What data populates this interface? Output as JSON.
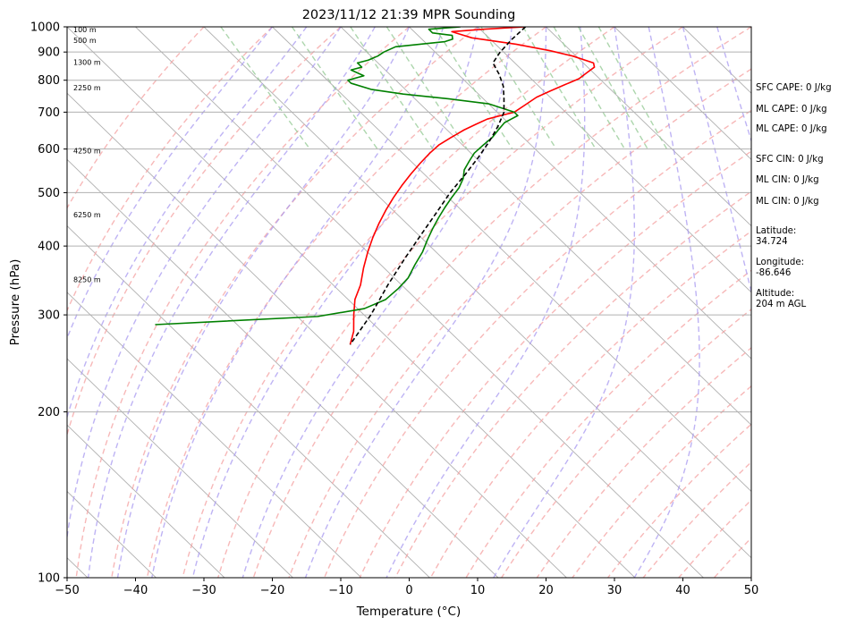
{
  "chart_data": {
    "type": "line",
    "title": "2023/11/12 21:39 MPR Sounding",
    "xlabel": "Temperature (°C)",
    "ylabel": "Pressure (hPa)",
    "xlim": [
      -50,
      50
    ],
    "ylim": [
      1000,
      100
    ],
    "y_scale": "log",
    "x_ticks": [
      -50,
      -40,
      -30,
      -20,
      -10,
      0,
      10,
      20,
      30,
      40,
      50
    ],
    "x_tick_labels": [
      "−50",
      "−40",
      "−30",
      "−20",
      "−10",
      "0",
      "10",
      "20",
      "30",
      "40",
      "50"
    ],
    "y_ticks": [
      1000,
      900,
      800,
      700,
      600,
      500,
      400,
      300,
      200,
      100
    ],
    "y_tick_labels": [
      "1000",
      "900",
      "800",
      "700",
      "600",
      "500",
      "400",
      "300",
      "200",
      "100"
    ],
    "grid": true,
    "skew_deg_per_log10": 83,
    "series": [
      {
        "key": "temperature",
        "color": "#ff0000",
        "points": [
          [
            17,
            1000
          ],
          [
            10.5,
            990
          ],
          [
            5.5,
            980
          ],
          [
            7.5,
            955
          ],
          [
            13,
            930
          ],
          [
            17,
            905
          ],
          [
            19.5,
            885
          ],
          [
            21.5,
            860
          ],
          [
            21,
            845
          ],
          [
            19,
            825
          ],
          [
            17,
            805
          ],
          [
            14,
            785
          ],
          [
            11,
            765
          ],
          [
            8,
            745
          ],
          [
            5,
            720
          ],
          [
            2.5,
            700
          ],
          [
            0,
            690
          ],
          [
            -2.5,
            680
          ],
          [
            -5,
            665
          ],
          [
            -7.5,
            650
          ],
          [
            -10.5,
            630
          ],
          [
            -13.5,
            610
          ],
          [
            -16,
            590
          ],
          [
            -19,
            565
          ],
          [
            -22,
            540
          ],
          [
            -25,
            515
          ],
          [
            -28,
            490
          ],
          [
            -31,
            465
          ],
          [
            -34,
            440
          ],
          [
            -37,
            415
          ],
          [
            -40,
            390
          ],
          [
            -43,
            365
          ],
          [
            -46,
            340
          ],
          [
            -49,
            320
          ],
          [
            -51.5,
            300
          ],
          [
            -54,
            280
          ],
          [
            -56.5,
            265
          ]
        ]
      },
      {
        "key": "dewpoint",
        "color": "#008000",
        "points": [
          [
            7.5,
            1000
          ],
          [
            2.5,
            990
          ],
          [
            2.5,
            975
          ],
          [
            5,
            965
          ],
          [
            4.5,
            950
          ],
          [
            3,
            940
          ],
          [
            -5,
            920
          ],
          [
            -7.5,
            900
          ],
          [
            -9,
            885
          ],
          [
            -11,
            870
          ],
          [
            -13,
            860
          ],
          [
            -13,
            845
          ],
          [
            -15,
            835
          ],
          [
            -14,
            815
          ],
          [
            -17,
            800
          ],
          [
            -17,
            790
          ],
          [
            -15,
            770
          ],
          [
            -11,
            755
          ],
          [
            -5,
            740
          ],
          [
            0,
            725
          ],
          [
            2.5,
            700
          ],
          [
            2.5,
            690
          ],
          [
            1,
            680
          ],
          [
            -0.5,
            670
          ],
          [
            -2.5,
            650
          ],
          [
            -4.5,
            630
          ],
          [
            -7,
            610
          ],
          [
            -9.5,
            590
          ],
          [
            -11.5,
            570
          ],
          [
            -13.5,
            550
          ],
          [
            -15,
            530
          ],
          [
            -17,
            510
          ],
          [
            -19.5,
            490
          ],
          [
            -22,
            470
          ],
          [
            -24.5,
            450
          ],
          [
            -27,
            430
          ],
          [
            -29.5,
            410
          ],
          [
            -32,
            390
          ],
          [
            -35,
            370
          ],
          [
            -38,
            350
          ],
          [
            -41,
            335
          ],
          [
            -44.5,
            320
          ],
          [
            -49,
            308
          ],
          [
            -57,
            298
          ],
          [
            -82,
            288
          ]
        ]
      },
      {
        "key": "parcel",
        "color": "#000000",
        "dashed": true,
        "points": [
          [
            17,
            1000
          ],
          [
            13.2,
            950
          ],
          [
            9.5,
            900
          ],
          [
            6.8,
            860
          ],
          [
            6,
            820
          ],
          [
            4.8,
            780
          ],
          [
            3,
            740
          ],
          [
            1,
            700
          ],
          [
            -2,
            660
          ],
          [
            -5.5,
            620
          ],
          [
            -9.5,
            580
          ],
          [
            -14,
            540
          ],
          [
            -19,
            500
          ],
          [
            -24,
            460
          ],
          [
            -29.5,
            420
          ],
          [
            -35.5,
            380
          ],
          [
            -42,
            340
          ],
          [
            -49,
            300
          ],
          [
            -56.5,
            265
          ]
        ]
      }
    ],
    "height_labels": [
      {
        "text": "100 m",
        "p": 989
      },
      {
        "text": "500 m",
        "p": 945
      },
      {
        "text": "1300 m",
        "p": 862
      },
      {
        "text": "2250 m",
        "p": 775
      },
      {
        "text": "4250 m",
        "p": 596
      },
      {
        "text": "6250 m",
        "p": 456
      },
      {
        "text": "8250 m",
        "p": 348
      }
    ]
  },
  "stats": [
    "SFC CAPE: 0 J/kg",
    "ML CAPE: 0 J/kg",
    "ML CAPE: 0 J/kg",
    "SFC CIN: 0 J/kg",
    "ML CIN: 0 J/kg",
    "ML CIN: 0 J/kg"
  ],
  "location": {
    "latitude_label": "Latitude:",
    "latitude": "34.724",
    "longitude_label": "Longitude:",
    "longitude": "-86.646",
    "altitude_label": "Altitude:",
    "altitude": "204 m AGL"
  },
  "colors": {
    "temperature": "#ff0000",
    "dewpoint": "#008000",
    "parcel": "#000000",
    "isotherm": "#b0b0b0",
    "dry_adiabat": "#f4a0a0",
    "moist_adiabat": "#a89af0",
    "mixing_ratio": "#98cc98"
  }
}
